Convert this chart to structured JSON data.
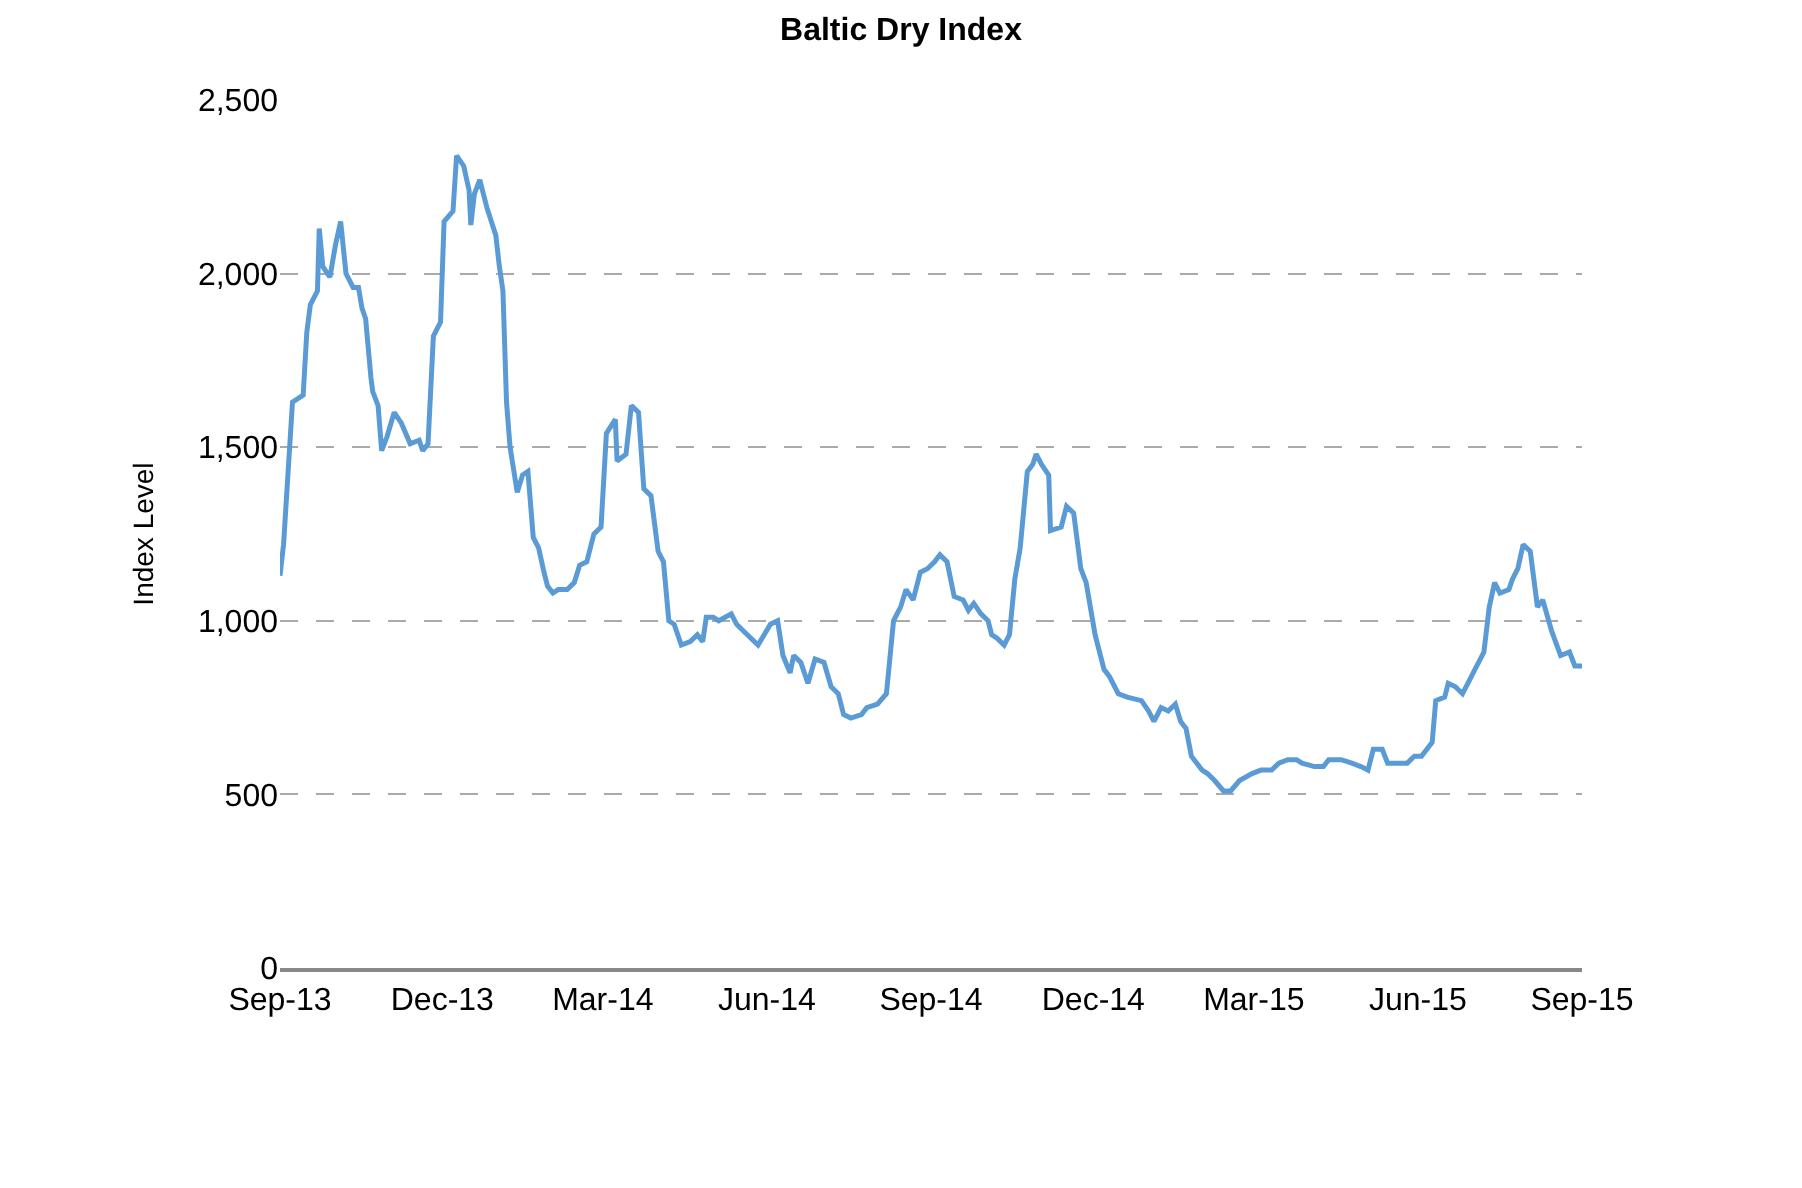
{
  "chart_data": {
    "type": "line",
    "title": "Baltic Dry Index",
    "ylabel": "Index Level",
    "x": [
      "2013-09-01",
      "2013-09-03",
      "2013-09-08",
      "2013-09-14",
      "2013-09-16",
      "2013-09-18",
      "2013-09-22",
      "2013-09-23",
      "2013-09-25",
      "2013-09-29",
      "2013-10-02",
      "2013-10-05",
      "2013-10-08",
      "2013-10-12",
      "2013-10-15",
      "2013-10-17",
      "2013-10-19",
      "2013-10-22",
      "2013-10-23",
      "2013-10-26",
      "2013-10-28",
      "2013-10-31",
      "2013-11-04",
      "2013-11-08",
      "2013-11-13",
      "2013-11-18",
      "2013-11-20",
      "2013-11-23",
      "2013-11-26",
      "2013-11-30",
      "2013-12-02",
      "2013-12-07",
      "2013-12-09",
      "2013-12-13",
      "2013-12-16",
      "2013-12-17",
      "2013-12-19",
      "2013-12-22",
      "2013-12-26",
      "2013-12-31",
      "2014-01-02",
      "2014-01-04",
      "2014-01-06",
      "2014-01-08",
      "2014-01-12",
      "2014-01-15",
      "2014-01-18",
      "2014-01-21",
      "2014-01-24",
      "2014-01-27",
      "2014-01-29",
      "2014-02-01",
      "2014-02-04",
      "2014-02-09",
      "2014-02-13",
      "2014-02-16",
      "2014-02-20",
      "2014-02-24",
      "2014-02-28",
      "2014-03-03",
      "2014-03-08",
      "2014-03-09",
      "2014-03-14",
      "2014-03-17",
      "2014-03-21",
      "2014-03-24",
      "2014-03-28",
      "2014-04-01",
      "2014-04-04",
      "2014-04-07",
      "2014-04-10",
      "2014-04-14",
      "2014-04-19",
      "2014-04-23",
      "2014-04-26",
      "2014-04-28",
      "2014-05-02",
      "2014-05-05",
      "2014-05-12",
      "2014-05-15",
      "2014-05-21",
      "2014-05-27",
      "2014-06-03",
      "2014-06-07",
      "2014-06-10",
      "2014-06-14",
      "2014-06-16",
      "2014-06-20",
      "2014-06-24",
      "2014-06-28",
      "2014-07-03",
      "2014-07-07",
      "2014-07-11",
      "2014-07-14",
      "2014-07-18",
      "2014-07-24",
      "2014-07-27",
      "2014-08-02",
      "2014-08-07",
      "2014-08-11",
      "2014-08-15",
      "2014-08-18",
      "2014-08-22",
      "2014-08-26",
      "2014-08-30",
      "2014-09-03",
      "2014-09-06",
      "2014-09-10",
      "2014-09-14",
      "2014-09-19",
      "2014-09-22",
      "2014-09-25",
      "2014-09-29",
      "2014-10-03",
      "2014-10-05",
      "2014-10-08",
      "2014-10-12",
      "2014-10-15",
      "2014-10-18",
      "2014-10-21",
      "2014-10-25",
      "2014-10-28",
      "2014-10-30",
      "2014-11-02",
      "2014-11-06",
      "2014-11-07",
      "2014-11-13",
      "2014-11-16",
      "2014-11-20",
      "2014-11-24",
      "2014-11-27",
      "2014-12-02",
      "2014-12-07",
      "2014-12-10",
      "2014-12-15",
      "2014-12-20",
      "2014-12-28",
      "2015-01-01",
      "2015-01-04",
      "2015-01-08",
      "2015-01-12",
      "2015-01-16",
      "2015-01-19",
      "2015-01-22",
      "2015-01-25",
      "2015-01-31",
      "2015-02-03",
      "2015-02-07",
      "2015-02-12",
      "2015-02-16",
      "2015-02-21",
      "2015-02-28",
      "2015-03-05",
      "2015-03-11",
      "2015-03-15",
      "2015-03-20",
      "2015-03-25",
      "2015-03-28",
      "2015-04-04",
      "2015-04-09",
      "2015-04-12",
      "2015-04-19",
      "2015-04-25",
      "2015-04-30",
      "2015-05-04",
      "2015-05-07",
      "2015-05-12",
      "2015-05-15",
      "2015-05-21",
      "2015-05-26",
      "2015-05-30",
      "2015-06-03",
      "2015-06-09",
      "2015-06-11",
      "2015-06-16",
      "2015-06-18",
      "2015-06-22",
      "2015-06-26",
      "2015-06-29",
      "2015-07-03",
      "2015-07-08",
      "2015-07-11",
      "2015-07-14",
      "2015-07-17",
      "2015-07-22",
      "2015-07-24",
      "2015-07-27",
      "2015-07-30",
      "2015-08-03",
      "2015-08-07",
      "2015-08-10",
      "2015-08-15",
      "2015-08-20",
      "2015-08-25",
      "2015-08-28",
      "2015-09-01"
    ],
    "series": [
      {
        "color": "#5b9bd5",
        "values": [
          1130,
          1220,
          1630,
          1650,
          1830,
          1910,
          1950,
          2130,
          2020,
          1990,
          2080,
          2150,
          2000,
          1960,
          1960,
          1900,
          1870,
          1700,
          1660,
          1620,
          1490,
          1530,
          1600,
          1570,
          1510,
          1520,
          1490,
          1510,
          1820,
          1860,
          2150,
          2180,
          2340,
          2310,
          2240,
          2140,
          2230,
          2270,
          2190,
          2110,
          2020,
          1950,
          1630,
          1500,
          1370,
          1420,
          1430,
          1240,
          1210,
          1140,
          1100,
          1080,
          1090,
          1090,
          1110,
          1160,
          1170,
          1250,
          1270,
          1540,
          1580,
          1460,
          1480,
          1620,
          1600,
          1380,
          1360,
          1200,
          1170,
          1000,
          990,
          930,
          940,
          960,
          940,
          1010,
          1010,
          1000,
          1020,
          990,
          960,
          930,
          990,
          1000,
          900,
          850,
          900,
          880,
          820,
          890,
          880,
          810,
          790,
          730,
          720,
          730,
          750,
          760,
          790,
          1000,
          1040,
          1090,
          1060,
          1140,
          1150,
          1170,
          1190,
          1170,
          1070,
          1060,
          1030,
          1050,
          1020,
          1000,
          960,
          950,
          930,
          960,
          1120,
          1210,
          1430,
          1450,
          1480,
          1450,
          1420,
          1260,
          1270,
          1330,
          1310,
          1150,
          1110,
          960,
          860,
          840,
          790,
          780,
          770,
          740,
          710,
          750,
          740,
          760,
          710,
          690,
          610,
          570,
          560,
          540,
          510,
          510,
          540,
          560,
          570,
          570,
          590,
          600,
          600,
          590,
          580,
          580,
          600,
          600,
          590,
          580,
          570,
          630,
          630,
          590,
          590,
          590,
          610,
          610,
          650,
          770,
          780,
          820,
          810,
          790,
          820,
          860,
          910,
          1040,
          1110,
          1080,
          1090,
          1120,
          1150,
          1220,
          1200,
          1040,
          1060,
          970,
          900,
          910,
          870,
          870
        ]
      }
    ],
    "xlim": [
      "2013-09-01",
      "2015-09-01"
    ],
    "xticks": [
      {
        "value": "2013-09-01",
        "label": "Sep-13"
      },
      {
        "value": "2013-12-01",
        "label": "Dec-13"
      },
      {
        "value": "2014-03-01",
        "label": "Mar-14"
      },
      {
        "value": "2014-06-01",
        "label": "Jun-14"
      },
      {
        "value": "2014-09-01",
        "label": "Sep-14"
      },
      {
        "value": "2014-12-01",
        "label": "Dec-14"
      },
      {
        "value": "2015-03-01",
        "label": "Mar-15"
      },
      {
        "value": "2015-06-01",
        "label": "Jun-15"
      },
      {
        "value": "2015-09-01",
        "label": "Sep-15"
      }
    ],
    "ylim": [
      0,
      2500
    ],
    "yticks": [
      0,
      {
        "value": 500,
        "label": "500"
      },
      {
        "value": 1000,
        "label": "1,000"
      },
      {
        "value": 1500,
        "label": "1,500"
      },
      {
        "value": 2000,
        "label": "2,000"
      },
      {
        "value": 2500,
        "label": "2,500"
      }
    ],
    "grid": "y"
  }
}
